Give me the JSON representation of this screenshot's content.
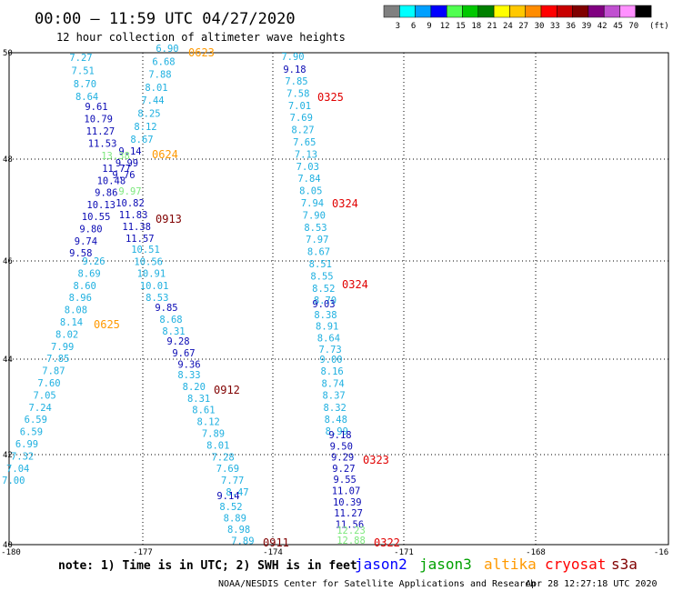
{
  "header": {
    "title": "00:00 – 11:59 UTC 04/27/2020",
    "subtitle": "12 hour collection of altimeter wave heights"
  },
  "colorbar": {
    "unit": "(ft)",
    "bins": [
      {
        "color": "#808080",
        "label": "3"
      },
      {
        "color": "#00ffff",
        "label": "6"
      },
      {
        "color": "#00a0ff",
        "label": "9"
      },
      {
        "color": "#0000ff",
        "label": "12"
      },
      {
        "color": "#50ff50",
        "label": "15"
      },
      {
        "color": "#00c800",
        "label": "18"
      },
      {
        "color": "#008000",
        "label": "21"
      },
      {
        "color": "#ffff00",
        "label": "24"
      },
      {
        "color": "#ffc800",
        "label": "27"
      },
      {
        "color": "#ff8c00",
        "label": "30"
      },
      {
        "color": "#ff0000",
        "label": "33"
      },
      {
        "color": "#c80000",
        "label": "36"
      },
      {
        "color": "#800000",
        "label": "39"
      },
      {
        "color": "#800080",
        "label": "42"
      },
      {
        "color": "#c050d0",
        "label": "45"
      },
      {
        "color": "#ff90ff",
        "label": "70"
      },
      {
        "color": "#000000",
        "label": ""
      }
    ]
  },
  "axes": {
    "lon_labels": [
      "-180",
      "-177",
      "-174",
      "-171",
      "-168",
      "-16"
    ],
    "lat_labels": [
      "50",
      "48",
      "46",
      "44",
      "42",
      "40"
    ]
  },
  "colors": {
    "sky": "#1fb0e0",
    "blue": "#0a0ab4",
    "green": "#7de87d",
    "orange": "#ff9900",
    "red": "#e00000",
    "maroon": "#800000"
  },
  "tracks": {
    "t1": {
      "color": "sky",
      "values": [
        "7.27",
        "7.51",
        "8.70",
        "8.64"
      ]
    },
    "t2": {
      "color": "blue",
      "values": [
        "9.61",
        "10.79",
        "11.27",
        "11.53"
      ]
    },
    "t3": {
      "color": "sky",
      "values": [
        "6.90",
        "6.68",
        "7.88",
        "8.01",
        "7.44",
        "8.25",
        "8.12",
        "8.67"
      ]
    },
    "t4": {
      "color": "blue",
      "values": [
        "9.14",
        "9.99",
        "9.76"
      ]
    },
    "t5": {
      "color": "blue",
      "values": [
        "11.77",
        "10.48",
        "9.86",
        "10.13",
        "10.55",
        "9.80",
        "9.74",
        "9.58"
      ]
    },
    "t6": {
      "color": "blue",
      "values": [
        "10.82",
        "11.83",
        "11.38",
        "11.57"
      ]
    },
    "t7": {
      "color": "sky",
      "values": [
        "9.26",
        "8.69",
        "8.60",
        "8.96",
        "8.08",
        "8.14",
        "8.02",
        "7.99",
        "7.85",
        "7.87",
        "7.60",
        "7.05",
        "7.24",
        "6.59",
        "6.59",
        "6.99",
        "7.32",
        "7.04",
        "7.00"
      ]
    },
    "t8": {
      "color": "sky",
      "values": [
        "10.51",
        "10.56",
        "10.91",
        "10.01",
        "8.53"
      ]
    },
    "t9": {
      "color": "blue",
      "values": [
        "9.85"
      ]
    },
    "t10": {
      "color": "sky",
      "values": [
        "8.68",
        "8.31"
      ]
    },
    "t11": {
      "color": "blue",
      "values": [
        "9.28",
        "9.67",
        "9.36"
      ]
    },
    "t12": {
      "color": "sky",
      "values": [
        "8.33",
        "8.20",
        "8.31",
        "8.61",
        "8.12",
        "7.89",
        "8.01",
        "7.28",
        "7.69",
        "7.77",
        "8.47"
      ]
    },
    "t13": {
      "color": "blue",
      "values": [
        "9.14"
      ]
    },
    "t14": {
      "color": "sky",
      "values": [
        "8.52",
        "8.89",
        "8.98",
        "7.89"
      ]
    },
    "t15": {
      "color": "sky",
      "values": [
        "7.90"
      ]
    },
    "t16": {
      "color": "blue",
      "values": [
        "9.18"
      ]
    },
    "t17": {
      "color": "sky",
      "values": [
        "7.85",
        "7.58",
        "7.01",
        "7.69",
        "8.27",
        "7.65",
        "7.13",
        "7.03",
        "7.84",
        "8.05",
        "7.94",
        "7.90",
        "8.53",
        "7.97",
        "8.67",
        "8.51",
        "8.55",
        "8.52",
        "8.70"
      ]
    },
    "t18": {
      "color": "blue",
      "values": [
        "9.03"
      ]
    },
    "t19": {
      "color": "sky",
      "values": [
        "8.38",
        "8.91",
        "8.64",
        "7.73"
      ]
    },
    "t20": {
      "color": "sky",
      "values": [
        "9.00",
        "8.16",
        "8.74",
        "8.37",
        "8.32",
        "8.48",
        "8.99"
      ]
    },
    "t21": {
      "color": "blue",
      "values": [
        "9.18",
        "9.50",
        "9.29",
        "9.27",
        "9.55",
        "11.07",
        "10.39",
        "11.27",
        "11.56"
      ]
    },
    "t22": {
      "color": "green",
      "values": [
        "12.23",
        "12.88"
      ]
    },
    "g1": {
      "color": "green",
      "values": [
        "13.38"
      ]
    },
    "g2": {
      "color": "green",
      "values": [
        "9.97"
      ]
    }
  },
  "time_labels": [
    {
      "text": "0623",
      "color": "orange"
    },
    {
      "text": "0624",
      "color": "orange"
    },
    {
      "text": "0625",
      "color": "orange"
    },
    {
      "text": "0913",
      "color": "maroon"
    },
    {
      "text": "0912",
      "color": "maroon"
    },
    {
      "text": "0911",
      "color": "maroon"
    },
    {
      "text": "0325",
      "color": "red"
    },
    {
      "text": "0324",
      "color": "red"
    },
    {
      "text": "0324",
      "color": "red"
    },
    {
      "text": "0323",
      "color": "red"
    },
    {
      "text": "0322",
      "color": "red"
    }
  ],
  "footer": {
    "note": "note: 1) Time is in UTC; 2) SWH is in feet",
    "credit": "NOAA/NESDIS Center for Satellite Applications and Research",
    "timestamp": "Apr 28 12:27:18 UTC 2020",
    "satellites": [
      {
        "name": "jason2",
        "color": "#0000ff"
      },
      {
        "name": "jason3",
        "color": "#00a000"
      },
      {
        "name": "altika",
        "color": "#ff9900"
      },
      {
        "name": "cryosat",
        "color": "#ff0000"
      },
      {
        "name": "s3a",
        "color": "#800000"
      }
    ]
  }
}
